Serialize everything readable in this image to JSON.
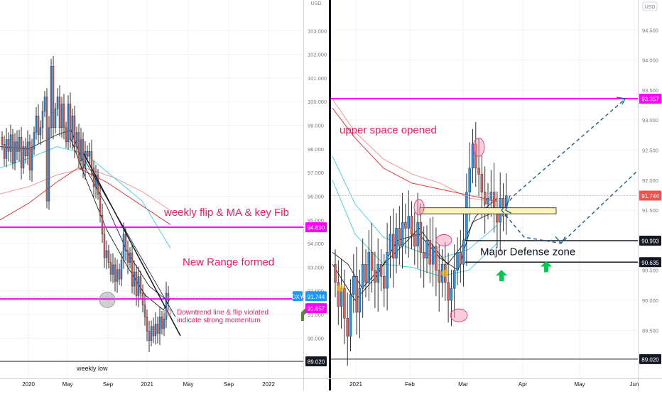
{
  "currency_label": "USD",
  "colors": {
    "up": "#2196f3",
    "down": "#e0625e",
    "magenta": "#ff00ff",
    "annotation": "#e91e63",
    "ma_red": "#e53935",
    "ma_cyan": "#4dd0e1",
    "ma_salmon": "#ef9a9a",
    "ma_black": "#212121",
    "arrow_green": "#00c853",
    "zone_yellow": "#fff3b0",
    "projection": "#1e5a8c"
  },
  "left_panel": {
    "ticker_badge": "DXY",
    "last_price": "91.744",
    "annotations": {
      "weekly_flip": "weekly flip & MA & key Fib",
      "new_range": "New Range formed",
      "downtrend_1": "Downtrend line & flip violated",
      "downtrend_2": "indicate strong momentum",
      "weekly_low": "weekly low"
    },
    "badges": {
      "upper": "94.690",
      "mid": "91.657",
      "low": "89.020"
    }
  },
  "right_panel": {
    "last_price": "91.744",
    "annotations": {
      "upper_space": "upper space opened",
      "defense_zone": "Major Defense zone"
    },
    "badges": {
      "top": "93.357",
      "last": "91.744",
      "defense_top": "90.993",
      "defense_bottom": "90.635",
      "low": "89.020"
    }
  },
  "chart_data": [
    {
      "type": "candlestick",
      "timeframe": "weekly",
      "x_tick_labels": [
        "2020",
        "May",
        "Sep",
        "2021",
        "May",
        "Sep",
        "2022"
      ],
      "y_tick_labels": [
        "103.000",
        "102.000",
        "101.000",
        "100.000",
        "99.000",
        "98.000",
        "97.000",
        "96.000",
        "95.000",
        "94.000",
        "93.000",
        "92.000",
        "91.000",
        "90.000"
      ],
      "ylim": [
        88.3,
        104.3
      ],
      "closes": [
        98.2,
        97.6,
        98.4,
        97.9,
        98.6,
        97.4,
        98.3,
        97.9,
        98.5,
        97.2,
        98.1,
        97.7,
        98.3,
        97.1,
        98.0,
        98.7,
        99.4,
        98.6,
        98.9,
        99.6,
        100.2,
        95.8,
        98.9,
        101.5,
        98.9,
        99.7,
        100.2,
        98.9,
        99.9,
        98.9,
        98.3,
        99.9,
        98.4,
        99.4,
        98.1,
        98.7,
        97.5,
        98.4,
        97.2,
        97.9,
        97.7,
        97.9,
        97.2,
        96.4,
        96.9,
        96.1,
        95.2,
        94.4,
        93.4,
        93.7,
        93.2,
        92.7,
        93.1,
        92.4,
        92.9,
        92.5,
        93.3,
        94.4,
        93.7,
        93.2,
        93.6,
        92.2,
        92.8,
        91.8,
        92.6,
        91.9,
        91.4,
        90.9,
        90.3,
        89.9,
        90.5,
        90.1,
        90.6,
        90.2,
        90.9,
        90.4,
        90.8,
        91.9,
        91.6
      ]
    },
    {
      "type": "candlestick",
      "timeframe": "daily",
      "x_tick_labels": [
        "2021",
        "Feb",
        "Mar",
        "Apr",
        "May",
        "Jun"
      ],
      "y_tick_labels": [
        "94.500",
        "94.000",
        "93.500",
        "93.000",
        "92.500",
        "92.000",
        "91.500",
        "90.500",
        "90.000",
        "89.500"
      ],
      "ylim": [
        88.7,
        95.0
      ],
      "key_levels": [
        93.357,
        90.993,
        90.635,
        89.02
      ],
      "closes": [
        90.3,
        89.9,
        90.2,
        89.7,
        89.4,
        90.1,
        90.4,
        89.8,
        90.2,
        90.6,
        90.3,
        90.8,
        90.5,
        90.3,
        90.6,
        90.4,
        90.2,
        90.8,
        91.1,
        90.7,
        91.2,
        90.9,
        91.3,
        91.2,
        91.4,
        91.1,
        90.9,
        91.3,
        90.8,
        90.7,
        91.0,
        90.6,
        90.9,
        90.5,
        90.3,
        90.6,
        90.3,
        90.0,
        90.2,
        90.5,
        90.8,
        90.6,
        91.0,
        91.8,
        92.2,
        92.6,
        92.2,
        92.1,
        91.8,
        91.6,
        91.7,
        91.8,
        91.5,
        91.3,
        91.7,
        91.4,
        91.744
      ]
    }
  ]
}
